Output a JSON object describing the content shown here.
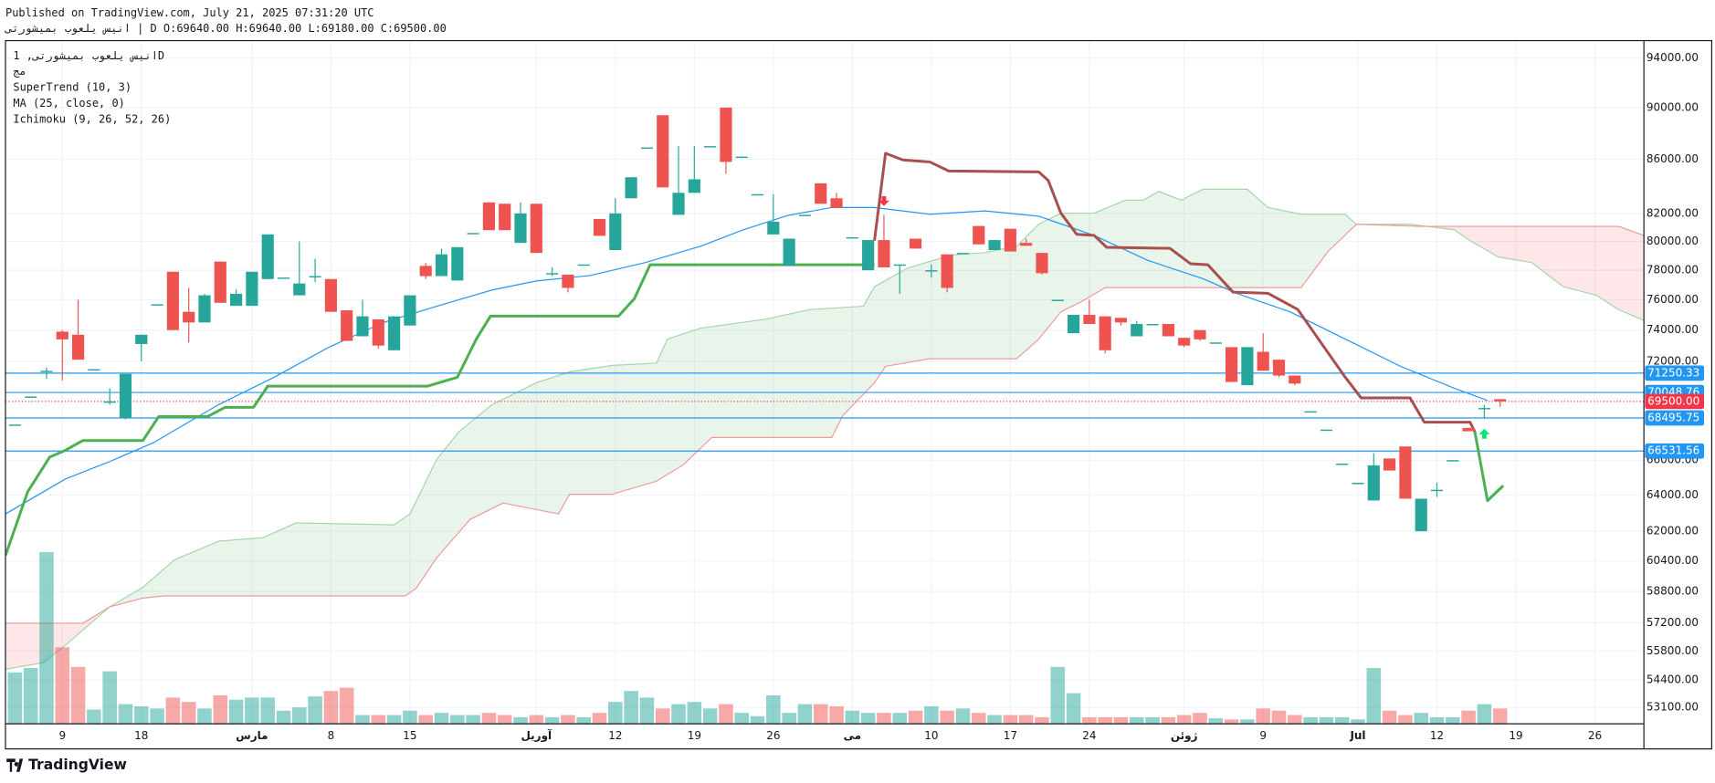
{
  "header": {
    "published": "Published on TradingView.com, July 21, 2025 07:31:20 UTC",
    "symbol_line": "انیس یلعوب بمیشورتی | D O:69640.00 H:69640.00 L:69180.00 C:69500.00"
  },
  "footer": {
    "brand": "TradingView"
  },
  "chart_data": {
    "type": "candlestick",
    "legend": [
      "انیس یلعوب بمیشورتی, 1D",
      "مج",
      "SuperTrend (10, 3)",
      "MA (25, close, 0)",
      "Ichimoku (9, 26, 52, 26)"
    ],
    "log_scale": true,
    "colors": {
      "up": "#26a69a",
      "down": "#ef5350"
    },
    "xlim": [
      -0.6,
      103.1
    ],
    "ylim": [
      52340,
      95460
    ],
    "vlim": [
      0,
      160
    ],
    "yticks": [
      {
        "value": 94000,
        "label": "94000.00"
      },
      {
        "value": 90000,
        "label": "90000.00"
      },
      {
        "value": 86000,
        "label": "86000.00"
      },
      {
        "value": 82000,
        "label": "82000.00"
      },
      {
        "value": 80000,
        "label": "80000.00"
      },
      {
        "value": 78000,
        "label": "78000.00"
      },
      {
        "value": 76000,
        "label": "76000.00"
      },
      {
        "value": 74000,
        "label": "74000.00"
      },
      {
        "value": 72000,
        "label": "72000.00"
      },
      {
        "value": 66000,
        "label": "66000.00"
      },
      {
        "value": 64000,
        "label": "64000.00"
      },
      {
        "value": 62000,
        "label": "62000.00"
      },
      {
        "value": 60400,
        "label": "60400.00"
      },
      {
        "value": 58800,
        "label": "58800.00"
      },
      {
        "value": 57200,
        "label": "57200.00"
      },
      {
        "value": 55800,
        "label": "55800.00"
      },
      {
        "value": 54400,
        "label": "54400.00"
      },
      {
        "value": 53100,
        "label": "53100.00"
      }
    ],
    "xticks": [
      {
        "value": 3,
        "label": "9"
      },
      {
        "value": 8,
        "label": "18"
      },
      {
        "value": 15,
        "label": "مارس"
      },
      {
        "value": 20,
        "label": "8"
      },
      {
        "value": 25,
        "label": "15"
      },
      {
        "value": 33,
        "label": "آوریل"
      },
      {
        "value": 38,
        "label": "12"
      },
      {
        "value": 43,
        "label": "19"
      },
      {
        "value": 48,
        "label": "26"
      },
      {
        "value": 53,
        "label": "می"
      },
      {
        "value": 58,
        "label": "10"
      },
      {
        "value": 63,
        "label": "17"
      },
      {
        "value": 68,
        "label": "24"
      },
      {
        "value": 74,
        "label": "ژوئن"
      },
      {
        "value": 79,
        "label": "9"
      },
      {
        "value": 85,
        "label": "Jul"
      },
      {
        "value": 90,
        "label": "12"
      },
      {
        "value": 95,
        "label": "19"
      },
      {
        "value": 100,
        "label": "26"
      }
    ],
    "open": [
      68100,
      69800,
      71400,
      73900,
      73700,
      71500,
      69500,
      68500,
      73100,
      75700,
      77900,
      75200,
      74500,
      78600,
      75600,
      75600,
      77400,
      77500,
      76300,
      77600,
      77400,
      75300,
      73600,
      74700,
      72700,
      74300,
      78300,
      77600,
      77300,
      80600,
      82800,
      82700,
      79900,
      82700,
      77800,
      77700,
      78400,
      81600,
      79400,
      83100,
      86900,
      89400,
      81900,
      83500,
      87000,
      90000,
      86200,
      83400,
      80500,
      78300,
      81900,
      84200,
      83100,
      80300,
      78000,
      80100,
      78400,
      80200,
      78000,
      79100,
      79200,
      81100,
      79400,
      80900,
      79900,
      79200,
      76000,
      73800,
      75000,
      74900,
      74800,
      73600,
      74400,
      74400,
      73500,
      74000,
      73200,
      72900,
      70500,
      72600,
      72100,
      71100,
      68900,
      67800,
      65800,
      64700,
      63700,
      66100,
      66800,
      62000,
      64300,
      66000,
      67900,
      69100,
      69640
    ],
    "high": [
      68100,
      69800,
      71600,
      74000,
      76000,
      71500,
      70300,
      71200,
      73700,
      75700,
      77900,
      76800,
      76400,
      78600,
      76700,
      77900,
      80500,
      77500,
      80000,
      78800,
      77400,
      75300,
      76000,
      74700,
      74900,
      76300,
      78500,
      79500,
      79600,
      80600,
      82800,
      82700,
      82800,
      82700,
      78200,
      77700,
      78400,
      81600,
      83100,
      84650,
      86900,
      89400,
      87000,
      87000,
      87000,
      90000,
      86200,
      83400,
      83400,
      80200,
      81900,
      84200,
      83500,
      80300,
      80100,
      81900,
      78400,
      80200,
      78400,
      79100,
      79200,
      81100,
      80100,
      80900,
      80200,
      79200,
      76000,
      75000,
      76000,
      74900,
      74800,
      74600,
      74400,
      74400,
      73500,
      74000,
      73200,
      72900,
      72900,
      73800,
      72100,
      71100,
      68900,
      67800,
      65800,
      64700,
      66400,
      66100,
      66800,
      63800,
      64700,
      66000,
      67900,
      69300,
      69640
    ],
    "low": [
      68100,
      69800,
      70900,
      70800,
      72100,
      71500,
      69300,
      68400,
      72000,
      75700,
      74000,
      73200,
      74500,
      75800,
      75600,
      75600,
      77400,
      77500,
      76300,
      77200,
      75200,
      73300,
      73600,
      72800,
      72700,
      74300,
      77400,
      77600,
      77300,
      80600,
      80800,
      80800,
      79900,
      79200,
      77600,
      76500,
      78400,
      80400,
      79400,
      83100,
      86900,
      83900,
      81900,
      83500,
      87000,
      84900,
      86200,
      83400,
      80500,
      78300,
      81900,
      82700,
      82400,
      80300,
      78000,
      78200,
      76400,
      79500,
      77500,
      76500,
      79200,
      79800,
      79400,
      79300,
      79700,
      77700,
      76000,
      73800,
      74400,
      72500,
      74300,
      73600,
      74400,
      73600,
      72900,
      73300,
      73200,
      70700,
      70500,
      71400,
      71000,
      70500,
      68900,
      67800,
      65800,
      64700,
      63700,
      65400,
      63800,
      62000,
      63900,
      66000,
      67700,
      68500,
      69180
    ],
    "close": [
      68100,
      69800,
      71400,
      73400,
      72100,
      71500,
      69500,
      71200,
      73700,
      75700,
      74000,
      74500,
      76300,
      75800,
      76400,
      77900,
      80500,
      77500,
      77100,
      77600,
      75200,
      73300,
      74900,
      73000,
      74900,
      76300,
      77600,
      79100,
      79600,
      80600,
      80800,
      80800,
      82000,
      79200,
      77800,
      76800,
      78400,
      80400,
      82000,
      84650,
      86900,
      83900,
      83500,
      84500,
      87000,
      85800,
      86200,
      83400,
      81400,
      80200,
      81900,
      82700,
      82400,
      80300,
      80100,
      78200,
      78400,
      79500,
      78000,
      76800,
      79200,
      79800,
      80100,
      79300,
      79700,
      77800,
      76000,
      75000,
      74400,
      72700,
      74500,
      74400,
      74400,
      73600,
      73000,
      73400,
      73200,
      70700,
      72900,
      71400,
      71100,
      70600,
      68900,
      67800,
      65800,
      64700,
      65700,
      65400,
      63800,
      63800,
      64300,
      66000,
      67700,
      69100,
      69500
    ],
    "volume": [
      47,
      51,
      157,
      70,
      52,
      13,
      48,
      18,
      16,
      14,
      24,
      20,
      14,
      26,
      22,
      24,
      24,
      12,
      15,
      25,
      30,
      33,
      8,
      8,
      8,
      12,
      8,
      10,
      8,
      8,
      10,
      8,
      6,
      8,
      6,
      8,
      6,
      10,
      20,
      30,
      24,
      14,
      18,
      20,
      14,
      18,
      10,
      7,
      26,
      10,
      18,
      18,
      16,
      12,
      10,
      10,
      10,
      12,
      16,
      12,
      14,
      10,
      8,
      8,
      8,
      6,
      52,
      28,
      6,
      6,
      6,
      6,
      6,
      6,
      8,
      10,
      5,
      4,
      4,
      14,
      12,
      8,
      6,
      6,
      6,
      4,
      51,
      12,
      8,
      10,
      6,
      6,
      12,
      18,
      14
    ],
    "ma": {
      "color": "#2196f3",
      "x": [
        -0.6,
        3.2,
        6.0,
        8.8,
        12.9,
        16.4,
        19.8,
        23.3,
        26.7,
        30.2,
        33.0,
        36.4,
        39.9,
        43.4,
        46.1,
        48.9,
        51.7,
        54.4,
        57.9,
        61.4,
        64.8,
        68.3,
        71.7,
        75.2,
        77.3,
        80.7,
        84.2,
        87.7,
        91.1,
        93.2
      ],
      "values": [
        62950,
        64920,
        65920,
        67040,
        69310,
        70990,
        72860,
        74490,
        75570,
        76660,
        77270,
        77640,
        78530,
        79670,
        80830,
        81850,
        82430,
        82430,
        81940,
        82180,
        81800,
        80430,
        78680,
        77420,
        76440,
        75200,
        73420,
        71680,
        70310,
        69560
      ]
    },
    "supertrend_up": {
      "color": "#4caf50",
      "x": [
        -0.6,
        0.8,
        2.2,
        3.2,
        4.3,
        8.1,
        9.1,
        12.2,
        13.3,
        15.1,
        16.0,
        26.1,
        28.0,
        29.2,
        30.1,
        38.2,
        39.2,
        40.2,
        54.4,
        null,
        92.4,
        93.2,
        94.2
      ],
      "values": [
        60690,
        64180,
        66180,
        66580,
        67150,
        67150,
        68580,
        68580,
        69140,
        69140,
        70440,
        70440,
        70990,
        73420,
        74920,
        74920,
        76070,
        78380,
        78380,
        null,
        67670,
        63690,
        64540
      ]
    },
    "supertrend_down": {
      "color": "#a94f4f",
      "x": [
        54.4,
        55.1,
        56.2,
        57.9,
        59.1,
        64.8,
        65.4,
        66.2,
        67.2,
        68.3,
        69.1,
        73.1,
        74.4,
        75.5,
        77.1,
        79.3,
        81.2,
        82.5,
        84.2,
        85.2,
        88.3,
        89.2,
        92.1,
        92.4
      ],
      "values": [
        80060,
        86450,
        85950,
        85800,
        85120,
        85050,
        84410,
        82020,
        80510,
        80430,
        79590,
        79520,
        78450,
        78380,
        76510,
        76440,
        75350,
        73420,
        70990,
        69720,
        69720,
        68240,
        68240,
        67670
      ]
    },
    "span_a": {
      "color": "#a5d6a7",
      "x": [
        -0.6,
        1.8,
        3.2,
        6.0,
        8.1,
        10.1,
        12.9,
        15.7,
        17.8,
        24.0,
        25.0,
        26.7,
        28.1,
        30.2,
        33.0,
        35.1,
        37.8,
        40.6,
        41.3,
        43.4,
        47.5,
        50.3,
        53.7,
        54.4,
        56.5,
        59.3,
        61.4,
        63.4,
        64.8,
        66.2,
        68.3,
        70.3,
        71.4,
        72.4,
        73.8,
        75.2,
        78.0,
        79.3,
        81.4,
        84.2,
        84.9,
        88.3,
        91.1,
        92.1,
        93.9,
        96.0,
        98.0,
        100.1,
        101.5,
        103.1
      ],
      "values": [
        54910,
        55230,
        56090,
        58010,
        59020,
        60460,
        61460,
        61650,
        62460,
        62350,
        62950,
        66050,
        67670,
        69310,
        70650,
        71330,
        71740,
        71880,
        73420,
        74130,
        74710,
        75350,
        75570,
        76880,
        78150,
        79060,
        79220,
        79670,
        81220,
        82020,
        82020,
        82960,
        82960,
        83600,
        82960,
        83760,
        83760,
        82430,
        81940,
        81940,
        81220,
        81220,
        80830,
        80060,
        78910,
        78530,
        76880,
        76300,
        75350,
        74630
      ]
    },
    "span_b": {
      "color": "#ef9a9a",
      "x": [
        -0.6,
        4.3,
        6.0,
        8.1,
        9.4,
        24.7,
        25.4,
        26.7,
        28.8,
        30.9,
        34.4,
        35.1,
        37.8,
        40.6,
        42.3,
        44.1,
        51.7,
        52.4,
        54.4,
        55.1,
        57.9,
        63.4,
        64.8,
        66.2,
        67.6,
        69.0,
        81.4,
        83.1,
        84.9,
        89.0,
        101.5,
        103.1
      ],
      "values": [
        57180,
        57180,
        58010,
        58460,
        58570,
        58570,
        58970,
        60580,
        62640,
        63560,
        62950,
        64050,
        64050,
        64790,
        65730,
        67330,
        67330,
        68640,
        70650,
        71680,
        72160,
        72160,
        73420,
        75200,
        75930,
        76820,
        76820,
        79290,
        81220,
        81070,
        81070,
        80430
      ]
    },
    "price_lines": [
      {
        "value": 71250.33,
        "label": "71250.33",
        "color": "#2196f3"
      },
      {
        "value": 70048.76,
        "label": "70048.76",
        "color": "#2196f3"
      },
      {
        "value": 68495.75,
        "label": "68495.75",
        "color": "#2196f3"
      },
      {
        "value": 66531.56,
        "label": "66531.56",
        "color": "#2196f3"
      }
    ],
    "last_price": {
      "value": 69500,
      "label": "69500.00",
      "color": "#f23645"
    },
    "signals": {
      "sell": [
        55
      ],
      "buy": [
        93
      ]
    }
  }
}
